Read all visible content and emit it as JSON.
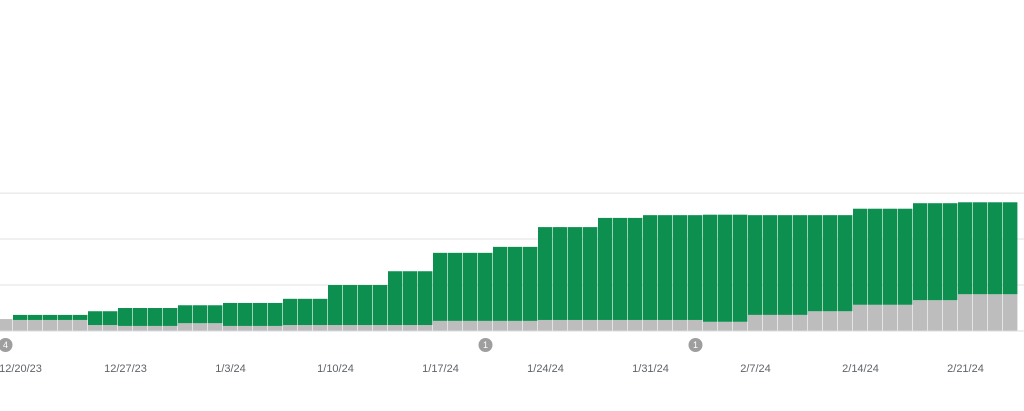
{
  "chart_data": {
    "type": "stacked_bar",
    "categories": [
      null,
      "12/20/23",
      null,
      null,
      null,
      null,
      null,
      null,
      "12/27/23",
      null,
      null,
      null,
      null,
      null,
      null,
      "1/3/24",
      null,
      null,
      null,
      null,
      null,
      null,
      "1/10/24",
      null,
      null,
      null,
      null,
      null,
      null,
      "1/17/24",
      null,
      null,
      null,
      null,
      null,
      null,
      "1/24/24",
      null,
      null,
      null,
      null,
      null,
      null,
      "1/31/24",
      null,
      null,
      null,
      null,
      null,
      null,
      "2/7/24",
      null,
      null,
      null,
      null,
      null,
      null,
      "2/14/24",
      null,
      null,
      null,
      null,
      null,
      null,
      "2/21/24",
      null,
      null,
      null
    ],
    "series": [
      {
        "color": "#bdbdbd",
        "values": [
          0.26,
          0.24,
          0.24,
          0.24,
          0.24,
          0.24,
          0.13,
          0.13,
          0.11,
          0.11,
          0.11,
          0.11,
          0.17,
          0.17,
          0.17,
          0.11,
          0.11,
          0.11,
          0.11,
          0.13,
          0.13,
          0.13,
          0.13,
          0.13,
          0.13,
          0.13,
          0.13,
          0.13,
          0.13,
          0.22,
          0.22,
          0.22,
          0.22,
          0.22,
          0.22,
          0.22,
          0.24,
          0.24,
          0.24,
          0.24,
          0.24,
          0.24,
          0.24,
          0.24,
          0.24,
          0.24,
          0.24,
          0.2,
          0.2,
          0.2,
          0.35,
          0.35,
          0.35,
          0.35,
          0.43,
          0.43,
          0.43,
          0.57,
          0.57,
          0.57,
          0.57,
          0.67,
          0.67,
          0.67,
          0.8,
          0.8,
          0.8,
          0.8
        ]
      },
      {
        "color": "#0d904f",
        "values": [
          0,
          0.11,
          0.11,
          0.11,
          0.11,
          0.11,
          0.3,
          0.3,
          0.39,
          0.39,
          0.39,
          0.39,
          0.39,
          0.39,
          0.39,
          0.5,
          0.5,
          0.5,
          0.5,
          0.57,
          0.57,
          0.57,
          0.87,
          0.87,
          0.87,
          0.87,
          1.17,
          1.17,
          1.17,
          1.48,
          1.48,
          1.48,
          1.48,
          1.61,
          1.61,
          1.61,
          2.02,
          2.02,
          2.02,
          2.02,
          2.22,
          2.22,
          2.22,
          2.28,
          2.28,
          2.28,
          2.28,
          2.33,
          2.33,
          2.33,
          2.17,
          2.17,
          2.17,
          2.17,
          2.09,
          2.09,
          2.09,
          2.09,
          2.09,
          2.09,
          2.09,
          2.11,
          2.11,
          2.11,
          2.0,
          2.0,
          2.0,
          2.0
        ]
      }
    ],
    "ylim": [
      0,
      7.2
    ],
    "gridlines": [
      1,
      2,
      3
    ],
    "annotations": [
      {
        "index": 0,
        "label": "4"
      },
      {
        "index": 32,
        "label": "1"
      },
      {
        "index": 46,
        "label": "1"
      }
    ]
  }
}
